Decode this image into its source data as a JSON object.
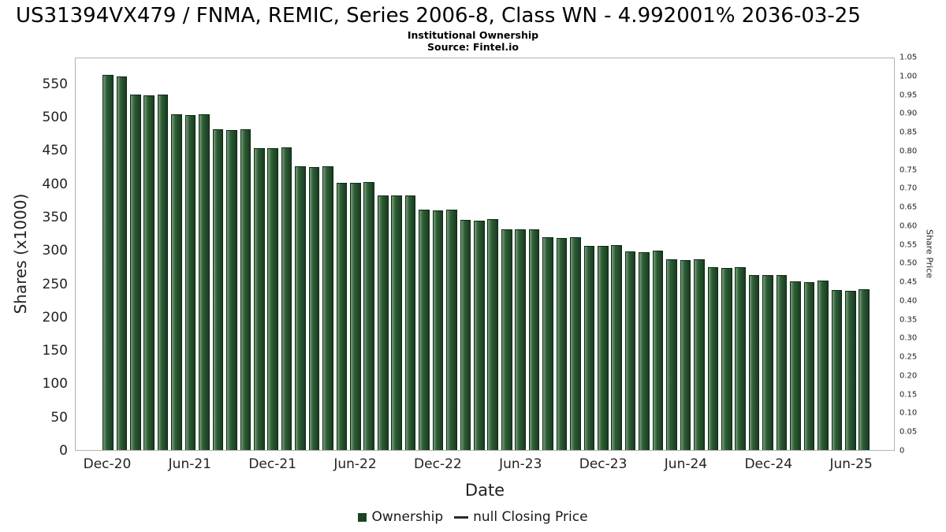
{
  "title": "US31394VX479 / FNMA, REMIC, Series 2006-8, Class WN - 4.992001% 2036-03-25",
  "subtitle": "Institutional Ownership",
  "source": "Source: Fintel.io",
  "colors": {
    "bar_fill": "#2f5c36",
    "bar_border": "#0e2913",
    "bar_highlight": "#73a077",
    "plot_border": "#b3b3b3",
    "text": "#222222"
  },
  "legend": {
    "ownership": "Ownership",
    "price": "null Closing Price"
  },
  "chart_data": {
    "type": "bar",
    "title": "Institutional Ownership",
    "xlabel": "Date",
    "ylabel_left": "Shares (x1000)",
    "ylabel_right": "Share Price",
    "ylim_left": [
      0,
      590
    ],
    "ylim_right": [
      0,
      1.05
    ],
    "grid": false,
    "legend_position": "bottom",
    "x": [
      "Dec-20",
      "Jan-21",
      "Feb-21",
      "Mar-21",
      "Apr-21",
      "May-21",
      "Jun-21",
      "Jul-21",
      "Aug-21",
      "Sep-21",
      "Oct-21",
      "Nov-21",
      "Dec-21",
      "Jan-22",
      "Feb-22",
      "Mar-22",
      "Apr-22",
      "May-22",
      "Jun-22",
      "Jul-22",
      "Aug-22",
      "Sep-22",
      "Oct-22",
      "Nov-22",
      "Dec-22",
      "Jan-23",
      "Feb-23",
      "Mar-23",
      "Apr-23",
      "May-23",
      "Jun-23",
      "Jul-23",
      "Aug-23",
      "Sep-23",
      "Oct-23",
      "Nov-23",
      "Dec-23",
      "Jan-24",
      "Feb-24",
      "Mar-24",
      "Apr-24",
      "May-24",
      "Jun-24",
      "Jul-24",
      "Aug-24",
      "Sep-24",
      "Oct-24",
      "Nov-24",
      "Dec-24",
      "Jan-25",
      "Feb-25",
      "Mar-25",
      "Apr-25",
      "May-25",
      "Jun-25",
      "Jul-25"
    ],
    "series": [
      {
        "name": "Ownership",
        "type": "bar",
        "values": [
          565,
          563,
          535,
          534,
          535,
          506,
          505,
          506,
          483,
          482,
          483,
          455,
          455,
          456,
          427,
          426,
          427,
          403,
          402,
          404,
          384,
          383,
          384,
          362,
          361,
          362,
          347,
          346,
          348,
          333,
          332,
          333,
          320,
          319,
          320,
          307,
          308,
          309,
          299,
          298,
          300,
          287,
          286,
          287,
          275,
          274,
          276,
          264,
          263,
          264,
          254,
          253,
          255,
          241,
          240,
          242
        ]
      },
      {
        "name": "null Closing Price",
        "type": "line",
        "values": []
      }
    ],
    "x_ticks": {
      "indices": [
        0,
        6,
        12,
        18,
        24,
        30,
        36,
        42,
        48,
        54
      ],
      "labels": [
        "Dec-20",
        "Jun-21",
        "Dec-21",
        "Jun-22",
        "Dec-22",
        "Jun-23",
        "Dec-23",
        "Jun-24",
        "Dec-24",
        "Jun-25"
      ]
    },
    "y_ticks_left": [
      "0",
      "50",
      "100",
      "150",
      "200",
      "250",
      "300",
      "350",
      "400",
      "450",
      "500",
      "550"
    ],
    "y_ticks_right": [
      "0",
      "0.05",
      "0.10",
      "0.15",
      "0.20",
      "0.25",
      "0.30",
      "0.35",
      "0.40",
      "0.45",
      "0.50",
      "0.55",
      "0.60",
      "0.65",
      "0.70",
      "0.75",
      "0.80",
      "0.85",
      "0.90",
      "0.95",
      "1.00",
      "1.05"
    ]
  }
}
